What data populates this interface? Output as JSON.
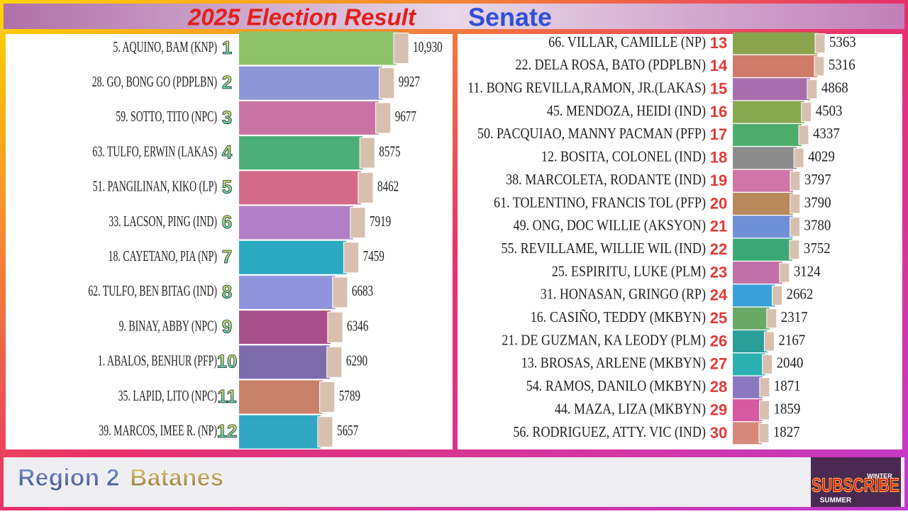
{
  "header": {
    "title": "2025 Election Result",
    "subtitle": "Senate"
  },
  "chart_data": [
    {
      "type": "bar",
      "orientation": "horizontal",
      "categories": [
        "5. AQUINO, BAM (KNP)",
        "28. GO, BONG GO (PDPLBN)",
        "59. SOTTO, TITO (NPC)",
        "63. TULFO, ERWIN (LAKAS)",
        "51. PANGILINAN, KIKO (LP)",
        "33. LACSON, PING (IND)",
        "18. CAYETANO, PIA (NP)",
        "62. TULFO, BEN BITAG (IND)",
        "9. BINAY, ABBY (NPC)",
        "1. ABALOS, BENHUR (PFP)",
        "35. LAPID, LITO (NPC)",
        "39. MARCOS, IMEE R. (NP)"
      ],
      "ranks": [
        1,
        2,
        3,
        4,
        5,
        6,
        7,
        8,
        9,
        10,
        11,
        12
      ],
      "values": [
        10930,
        9927,
        9677,
        8575,
        8462,
        7919,
        7459,
        6683,
        6346,
        6290,
        5789,
        5657
      ],
      "value_labels": [
        "10,930",
        "9927",
        "9677",
        "8575",
        "8462",
        "7919",
        "7459",
        "6683",
        "6346",
        "6290",
        "5789",
        "5657"
      ],
      "colors": [
        "#8dc26a",
        "#8c96d6",
        "#c973a5",
        "#4caf7a",
        "#d56a8a",
        "#b27fc6",
        "#2aa9c0",
        "#8f93dc",
        "#a8508a",
        "#7e6bae",
        "#c98068",
        "#2fa7c2"
      ]
    },
    {
      "type": "bar",
      "orientation": "horizontal",
      "categories": [
        "66. VILLAR, CAMILLE (NP)",
        "22. DELA ROSA, BATO (PDPLBN)",
        "11. BONG REVILLA,RAMON, JR.(LAKAS)",
        "45. MENDOZA, HEIDI (IND)",
        "50. PACQUIAO, MANNY PACMAN (PFP)",
        "12. BOSITA, COLONEL (IND)",
        "38. MARCOLETA, RODANTE (IND)",
        "61. TOLENTINO, FRANCIS TOL (PFP)",
        "49. ONG, DOC WILLIE (AKSYON)",
        "55. REVILLAME, WILLIE WIL (IND)",
        "25. ESPIRITU, LUKE (PLM)",
        "31. HONASAN, GRINGO (RP)",
        "16. CASIÑO, TEDDY (MKBYN)",
        "21. DE GUZMAN, KA LEODY (PLM)",
        "13. BROSAS, ARLENE (MKBYN)",
        "54. RAMOS, DANILO (MKBYN)",
        "44. MAZA, LIZA (MKBYN)",
        "56. RODRIGUEZ, ATTY. VIC (IND)"
      ],
      "ranks": [
        13,
        14,
        15,
        16,
        17,
        18,
        19,
        20,
        21,
        22,
        23,
        24,
        25,
        26,
        27,
        28,
        29,
        30
      ],
      "values": [
        5363,
        5316,
        4868,
        4503,
        4337,
        4029,
        3797,
        3790,
        3780,
        3752,
        3124,
        2662,
        2317,
        2167,
        2040,
        1871,
        1859,
        1827
      ],
      "colors": [
        "#8aa44e",
        "#d07a6a",
        "#a96dae",
        "#88a850",
        "#4cae6a",
        "#8c8c8c",
        "#d075a8",
        "#b8895a",
        "#6f8fd6",
        "#3aa875",
        "#c270a8",
        "#3aa0d8",
        "#6aa866",
        "#2a9f9a",
        "#2ab0b0",
        "#8a78c0",
        "#d65aa0",
        "#d8887a"
      ]
    }
  ],
  "footer": {
    "region": "Region 2",
    "province": "Batanes",
    "badge": "SUBSCRIBE",
    "badge_left": "SUMMER",
    "badge_right": "WINTER"
  }
}
